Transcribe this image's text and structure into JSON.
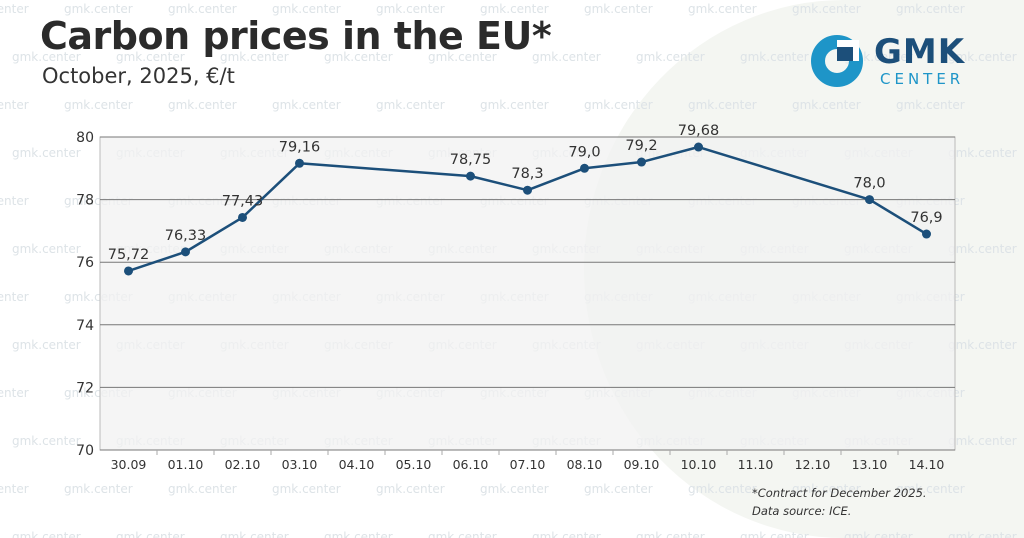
{
  "watermark_text": "gmk.center",
  "header": {
    "title": "Carbon prices in the EU*",
    "subtitle": "October, 2025, €/t"
  },
  "logo": {
    "name": "GMK",
    "tagline": "CENTER",
    "mark_icon": "gmk-ring-icon",
    "colors": {
      "ring": "#1e95c8",
      "text": "#1c4f7a"
    }
  },
  "footnote": {
    "line1": "*Contract for December 2025.",
    "line2": "Data source: ICE."
  },
  "colors": {
    "line": "#1c4f7a",
    "grid": "#777777",
    "plot_background": "#f2f2f2",
    "axis_text": "#333333"
  },
  "chart_data": {
    "type": "line",
    "title": "Carbon prices in the EU*",
    "subtitle": "October, 2025, €/t",
    "xlabel": "",
    "ylabel": "",
    "ylim": [
      70,
      80
    ],
    "yticks": [
      "70",
      "72",
      "74",
      "76",
      "78",
      "80"
    ],
    "grid": true,
    "categories": [
      "30.09",
      "01.10",
      "02.10",
      "03.10",
      "04.10",
      "05.10",
      "06.10",
      "07.10",
      "08.10",
      "09.10",
      "10.10",
      "11.10",
      "12.10",
      "13.10",
      "14.10"
    ],
    "series": [
      {
        "values": [
          75.72,
          76.33,
          77.43,
          79.16,
          null,
          null,
          78.75,
          78.3,
          79.0,
          79.2,
          79.68,
          null,
          null,
          78.0,
          76.9
        ],
        "labels": [
          "75,72",
          "76,33",
          "77,43",
          "79,16",
          "",
          "",
          "78,75",
          "78,3",
          "79,0",
          "79,2",
          "79,68",
          "",
          "",
          "78,0",
          "76,9"
        ]
      }
    ]
  }
}
